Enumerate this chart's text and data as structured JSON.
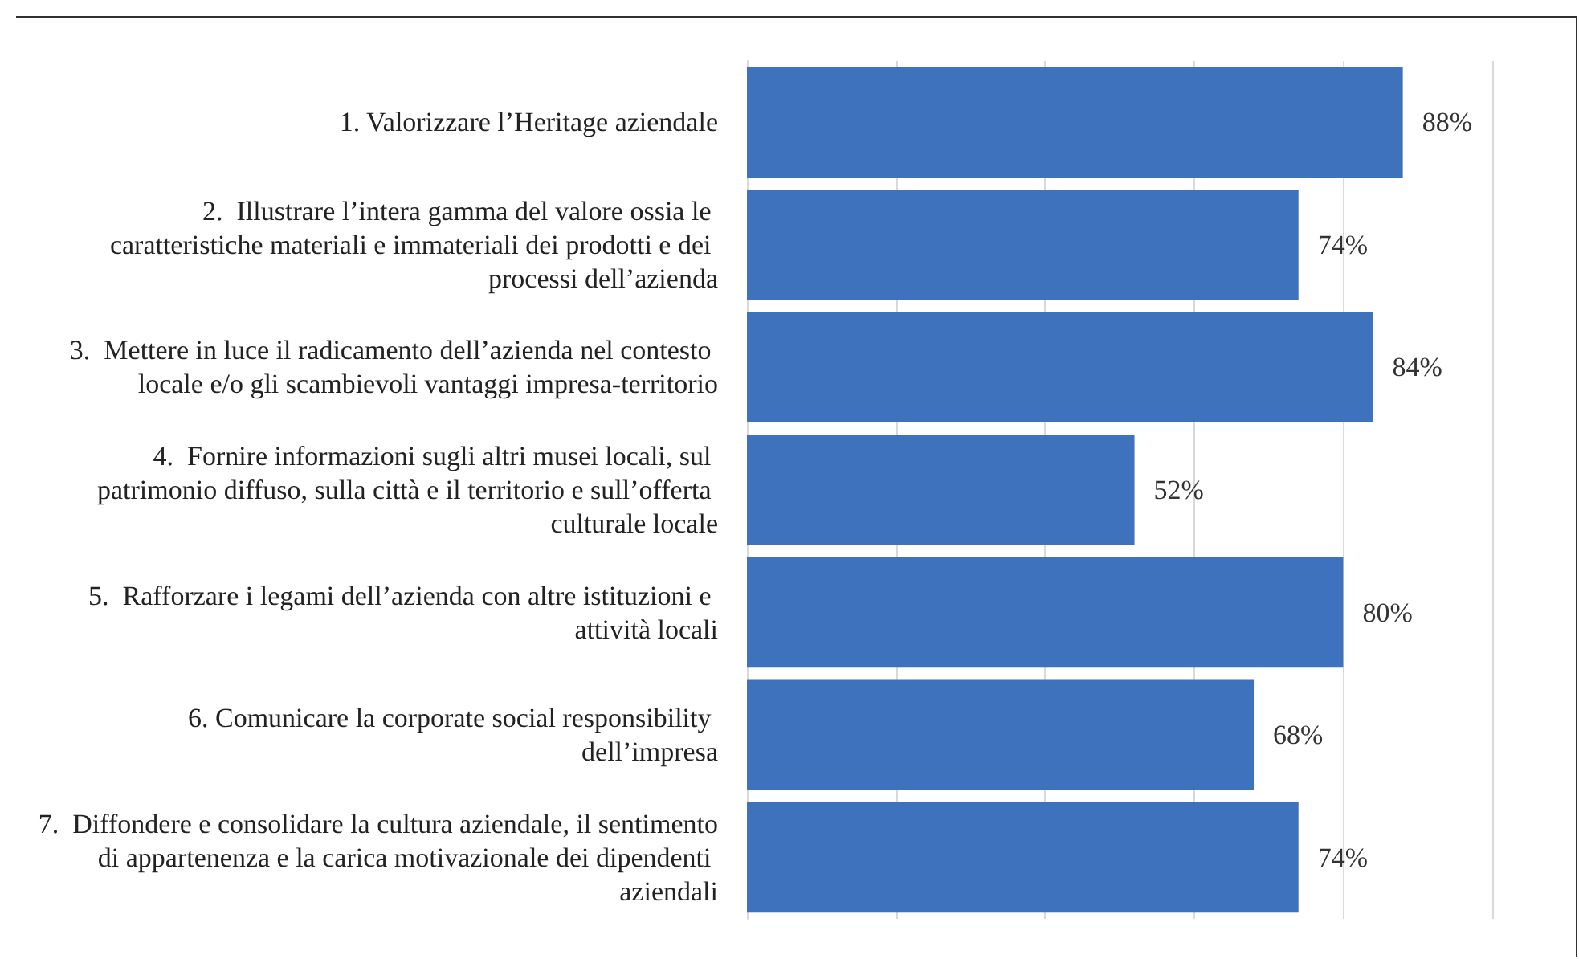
{
  "chart_data": {
    "type": "bar",
    "orientation": "horizontal",
    "categories": [
      "1. Valorizzare l’Heritage aziendale",
      "2.  Illustrare l’intera gamma del valore ossia le caratteristiche materiali e immateriali dei prodotti e dei processi dell’azienda",
      "3.  Mettere in luce il radicamento dell’azienda nel contesto locale e/o gli scambievoli vantaggi impresa-territorio",
      "4.  Fornire informazioni sugli altri musei locali, sul patrimonio diffuso, sulla città e il territorio e sull’offerta culturale locale",
      "5.  Rafforzare i legami dell’azienda con altre istituzioni e attività locali",
      "6. Comunicare la corporate social responsibility dell’impresa",
      "7.  Diffondere e consolidare la cultura aziendale, il sentimento di appartenenza e la carica motivazionale dei dipendenti aziendali"
    ],
    "values": [
      88,
      74,
      84,
      52,
      80,
      68,
      74
    ],
    "value_labels": [
      "88%",
      "74%",
      "84%",
      "52%",
      "80%",
      "68%",
      "74%"
    ],
    "color": "#3e72bd",
    "xlim": [
      0,
      100
    ],
    "xticks": [
      {
        "value": 0,
        "label": null
      },
      {
        "value": 20,
        "label": null
      },
      {
        "value": 40,
        "label": null
      },
      {
        "value": 60,
        "label": null
      },
      {
        "value": 80,
        "label": null
      },
      {
        "value": 100,
        "label": null
      }
    ],
    "grid": "x",
    "tick_labels": "y"
  }
}
